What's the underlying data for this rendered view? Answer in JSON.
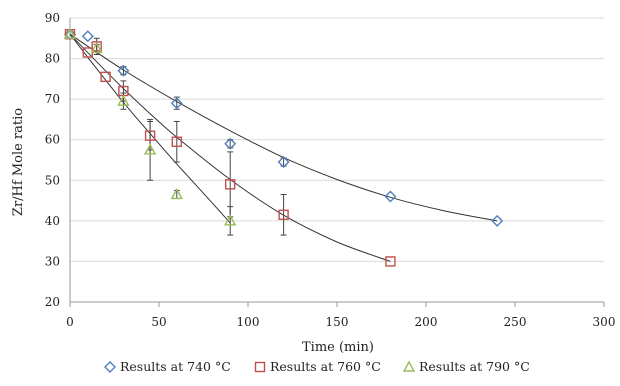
{
  "chart_data": {
    "type": "scatter",
    "title": "",
    "xlabel": "Time (min)",
    "ylabel": "Zr/Hf Mole ratio",
    "xlim": [
      0,
      300
    ],
    "ylim": [
      20,
      90
    ],
    "xticks": [
      0,
      50,
      100,
      150,
      200,
      250,
      300
    ],
    "yticks": [
      20,
      30,
      40,
      50,
      60,
      70,
      80,
      90
    ],
    "grid": "horizontal",
    "legend_position": "bottom",
    "series": [
      {
        "name": "Results at 740 °C",
        "marker": "diamond",
        "color": "#4f7fbf",
        "points": [
          {
            "x": 0,
            "y": 86,
            "err": 0
          },
          {
            "x": 10,
            "y": 85.5,
            "err": 0
          },
          {
            "x": 30,
            "y": 77,
            "err": 1
          },
          {
            "x": 60,
            "y": 69,
            "err": 1.5
          },
          {
            "x": 90,
            "y": 59,
            "err": 1
          },
          {
            "x": 120,
            "y": 54.5,
            "err": 1
          },
          {
            "x": 180,
            "y": 46,
            "err": 0
          },
          {
            "x": 240,
            "y": 40,
            "err": 0
          }
        ],
        "trend": [
          [
            0,
            86
          ],
          [
            30,
            77.2
          ],
          [
            60,
            69.4
          ],
          [
            90,
            62.2
          ],
          [
            120,
            55.6
          ],
          [
            150,
            50.2
          ],
          [
            180,
            45.8
          ],
          [
            210,
            42.5
          ],
          [
            240,
            40
          ]
        ]
      },
      {
        "name": "Results at 760 °C",
        "marker": "square",
        "color": "#c0504d",
        "points": [
          {
            "x": 0,
            "y": 86,
            "err": 0
          },
          {
            "x": 10,
            "y": 81.5,
            "err": 0
          },
          {
            "x": 15,
            "y": 83,
            "err": 2
          },
          {
            "x": 20,
            "y": 75.5,
            "err": 0
          },
          {
            "x": 30,
            "y": 72,
            "err": 2.5
          },
          {
            "x": 45,
            "y": 61,
            "err": 3.5
          },
          {
            "x": 60,
            "y": 59.5,
            "err": 5
          },
          {
            "x": 90,
            "y": 49,
            "err": 8
          },
          {
            "x": 120,
            "y": 41.5,
            "err": 5
          },
          {
            "x": 180,
            "y": 30,
            "err": 0
          }
        ],
        "trend": [
          [
            0,
            86
          ],
          [
            15,
            79.2
          ],
          [
            30,
            72.6
          ],
          [
            45,
            66.4
          ],
          [
            60,
            60.6
          ],
          [
            90,
            50.2
          ],
          [
            120,
            41.4
          ],
          [
            150,
            34.8
          ],
          [
            180,
            30
          ]
        ]
      },
      {
        "name": "Results at 790 °C",
        "marker": "triangle",
        "color": "#9bbb59",
        "points": [
          {
            "x": 0,
            "y": 86,
            "err": 0
          },
          {
            "x": 15,
            "y": 82.5,
            "err": 1
          },
          {
            "x": 30,
            "y": 69.5,
            "err": 2
          },
          {
            "x": 45,
            "y": 57.5,
            "err": 7.5
          },
          {
            "x": 60,
            "y": 46.5,
            "err": 1
          },
          {
            "x": 90,
            "y": 40,
            "err": 3.5
          }
        ],
        "trend": [
          [
            0,
            86
          ],
          [
            15,
            77.5
          ],
          [
            30,
            69.2
          ],
          [
            45,
            61.5
          ],
          [
            60,
            54
          ],
          [
            75,
            46.8
          ],
          [
            90,
            39.5
          ]
        ]
      }
    ]
  }
}
